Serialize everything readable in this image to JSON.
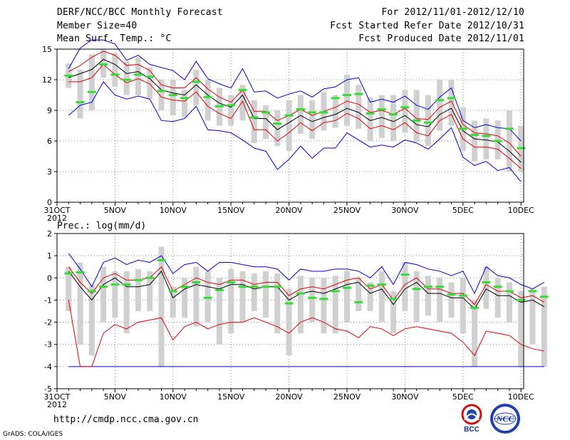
{
  "header": {
    "title": "DERF/NCC/BCC Monthly Forecast",
    "member_size": "Member Size=40",
    "variable": "Mean Surf. Temp.: °C",
    "period": "For 2012/11/01-2012/12/10",
    "started": "Fcst Started Refer Date 2012/10/31",
    "produced": "Fcst Produced Date 2012/11/01"
  },
  "footer": {
    "url": "http://cmdp.ncc.cma.gov.cn",
    "grads": "GrADS: COLA/IGES",
    "logo_bcc": "BCC",
    "logo_ncc": "NCC"
  },
  "colors": {
    "box": "#d0d0d0",
    "obs": "#33dd33",
    "mean": "#000000",
    "sd": "#e00000",
    "range": "#0000dd",
    "grid": "#888888"
  },
  "chart_data": [
    {
      "type": "line",
      "title": "Mean Surf. Temp.: °C",
      "x_ticks": [
        "31OCT\n2012",
        "5NOV",
        "10NOV",
        "15NOV",
        "20NOV",
        "25NOV",
        "30NOV",
        "5DEC",
        "10DEC"
      ],
      "ylim": [
        0,
        15
      ],
      "yticks": [
        0,
        3,
        6,
        9,
        12,
        15
      ],
      "grid": true,
      "series": {
        "mean": [
          12.2,
          12.6,
          13.0,
          14.0,
          13.5,
          12.6,
          12.8,
          12.1,
          11.0,
          10.7,
          10.5,
          11.5,
          10.5,
          9.7,
          9.3,
          10.5,
          8.2,
          8.2,
          7.1,
          7.8,
          8.5,
          7.9,
          8.3,
          8.6,
          9.2,
          8.8,
          8.0,
          8.3,
          7.9,
          8.5,
          7.6,
          7.4,
          8.6,
          9.2,
          7.0,
          6.2,
          6.1,
          5.9,
          5.0,
          3.9
        ],
        "sd_upper": [
          12.8,
          13.4,
          14.2,
          14.8,
          14.4,
          13.4,
          13.5,
          12.9,
          11.5,
          11.2,
          11.2,
          12.2,
          11.1,
          10.3,
          9.8,
          11.0,
          8.9,
          8.9,
          8.0,
          8.5,
          9.1,
          8.5,
          8.9,
          9.3,
          9.9,
          9.6,
          8.8,
          9.0,
          8.6,
          9.2,
          8.2,
          8.1,
          9.3,
          9.9,
          7.6,
          6.8,
          6.7,
          6.5,
          5.8,
          4.5
        ],
        "sd_lower": [
          11.8,
          11.8,
          12.2,
          13.5,
          12.5,
          11.7,
          12.1,
          11.6,
          10.3,
          10.0,
          9.9,
          10.8,
          9.4,
          8.7,
          8.2,
          9.9,
          7.1,
          7.1,
          6.0,
          6.8,
          7.8,
          7.0,
          7.8,
          8.0,
          8.7,
          8.2,
          7.2,
          7.5,
          7.1,
          7.8,
          6.8,
          6.5,
          8.0,
          8.6,
          6.2,
          5.4,
          5.4,
          5.2,
          4.3,
          3.3
        ],
        "max": [
          13.1,
          15.1,
          15.9,
          15.9,
          15.5,
          13.9,
          14.4,
          13.5,
          13.2,
          12.9,
          12.0,
          13.8,
          12.1,
          11.6,
          11.2,
          13.1,
          10.8,
          10.9,
          10.2,
          10.6,
          10.9,
          10.3,
          11.1,
          11.3,
          12.0,
          12.2,
          9.8,
          10.1,
          9.8,
          10.4,
          9.5,
          9.1,
          10.3,
          11.2,
          8.0,
          7.3,
          7.6,
          7.3,
          7.2,
          6.0
        ],
        "min": [
          8.5,
          9.5,
          9.8,
          11.8,
          10.5,
          10.1,
          10.4,
          10.1,
          8.0,
          7.9,
          8.2,
          9.4,
          7.1,
          7.0,
          6.8,
          6.1,
          5.3,
          5.0,
          3.2,
          4.2,
          5.5,
          4.3,
          5.3,
          5.3,
          6.8,
          6.1,
          5.4,
          5.6,
          5.4,
          6.1,
          5.8,
          5.2,
          6.2,
          7.3,
          4.4,
          3.6,
          4.0,
          3.1,
          3.4,
          2.0
        ],
        "box_top": [
          13.6,
          13.0,
          14.5,
          15.0,
          14.6,
          13.8,
          14.2,
          13.2,
          12.0,
          12.0,
          11.0,
          13.0,
          12.0,
          11.2,
          10.5,
          11.5,
          10.0,
          9.5,
          9.0,
          10.0,
          10.5,
          10.0,
          10.8,
          10.5,
          12.5,
          11.5,
          10.3,
          10.5,
          10.5,
          11.0,
          11.0,
          10.5,
          12.0,
          12.0,
          9.3,
          8.0,
          8.2,
          8.0,
          9.0,
          7.5
        ],
        "box_bottom": [
          11.2,
          8.2,
          9.0,
          12.2,
          11.3,
          10.5,
          10.5,
          10.1,
          9.0,
          8.5,
          8.3,
          9.5,
          8.0,
          7.5,
          7.5,
          8.0,
          5.8,
          6.2,
          5.5,
          5.0,
          6.7,
          6.2,
          7.0,
          7.3,
          7.5,
          7.2,
          6.0,
          6.3,
          6.0,
          6.8,
          5.9,
          5.5,
          7.0,
          7.5,
          5.0,
          4.0,
          4.2,
          4.2,
          3.0,
          3.0
        ],
        "observed": [
          12.4,
          9.8,
          10.8,
          13.5,
          12.5,
          12.0,
          12.5,
          12.3,
          10.9,
          10.5,
          10.2,
          11.8,
          10.3,
          9.4,
          9.5,
          11.0,
          8.3,
          8.8,
          7.7,
          8.5,
          9.1,
          8.8,
          8.8,
          10.2,
          10.5,
          10.6,
          8.7,
          9.1,
          8.6,
          9.3,
          8.0,
          7.8,
          10.0,
          10.2,
          7.2,
          6.6,
          6.5,
          6.0,
          7.2,
          5.3
        ]
      }
    },
    {
      "type": "line",
      "title": "Prec.: log(mm/d)",
      "x_ticks": [
        "31OCT\n2012",
        "5NOV",
        "10NOV",
        "15NOV",
        "20NOV",
        "25NOV",
        "30NOV",
        "5DEC",
        "10DEC"
      ],
      "ylim": [
        -5,
        2
      ],
      "yticks": [
        -5,
        -4,
        -3,
        -2,
        -1,
        0,
        1,
        2
      ],
      "grid": true,
      "series": {
        "mean": [
          0.3,
          -0.4,
          -1.0,
          -0.3,
          0.0,
          -0.4,
          -0.4,
          -0.3,
          0.3,
          -0.9,
          -0.5,
          -0.3,
          -0.4,
          -0.5,
          -0.3,
          -0.3,
          -0.5,
          -0.4,
          -0.4,
          -1.0,
          -0.7,
          -0.6,
          -0.7,
          -0.5,
          -0.3,
          -0.2,
          -0.7,
          -0.5,
          -1.2,
          -0.5,
          -0.2,
          -0.7,
          -0.7,
          -0.9,
          -0.9,
          -1.4,
          -0.5,
          -0.8,
          -0.8,
          -1.1,
          -1.0,
          -1.3
        ],
        "sd_upper": [
          0.5,
          -0.2,
          -0.7,
          0.0,
          0.2,
          -0.1,
          -0.1,
          0.0,
          0.5,
          -0.6,
          -0.3,
          0.0,
          -0.2,
          -0.3,
          -0.1,
          -0.1,
          -0.3,
          -0.2,
          -0.2,
          -0.8,
          -0.5,
          -0.4,
          -0.5,
          -0.3,
          -0.1,
          0.0,
          -0.5,
          -0.3,
          -1.0,
          -0.3,
          0.0,
          -0.5,
          -0.5,
          -0.7,
          -0.7,
          -1.2,
          -0.3,
          -0.6,
          -0.6,
          -0.9,
          -0.8,
          -1.1
        ],
        "sd_lower": [
          -1.0,
          -4.0,
          -4.0,
          -2.5,
          -2.1,
          -2.3,
          -2.0,
          -1.9,
          -1.8,
          -2.8,
          -2.2,
          -2.0,
          -2.3,
          -2.1,
          -2.0,
          -2.0,
          -1.8,
          -2.0,
          -2.2,
          -2.5,
          -2.0,
          -1.8,
          -2.0,
          -2.3,
          -2.4,
          -2.7,
          -2.2,
          -2.3,
          -2.6,
          -2.3,
          -2.2,
          -2.3,
          -2.4,
          -2.5,
          -2.9,
          -3.5,
          -2.4,
          -2.5,
          -2.6,
          -3.0,
          -3.2,
          -3.3
        ],
        "max": [
          1.1,
          0.4,
          -0.4,
          0.7,
          0.9,
          0.6,
          0.8,
          0.7,
          1.0,
          0.2,
          0.6,
          0.7,
          0.3,
          0.7,
          0.7,
          0.6,
          0.5,
          0.5,
          0.4,
          -0.1,
          0.4,
          0.3,
          0.3,
          0.4,
          0.4,
          0.3,
          0.0,
          0.5,
          -0.3,
          0.7,
          0.6,
          0.4,
          0.3,
          0.1,
          0.3,
          -0.7,
          0.5,
          0.1,
          0.0,
          -0.3,
          -0.5,
          -0.2
        ],
        "min": [
          -4.0,
          -4.0,
          -4.0,
          -4.0,
          -4.0,
          -4.0,
          -4.0,
          -4.0,
          -4.0,
          -4.0,
          -4.0,
          -4.0,
          -4.0,
          -4.0,
          -4.0,
          -4.0,
          -4.0,
          -4.0,
          -4.0,
          -4.0,
          -4.0,
          -4.0,
          -4.0,
          -4.0,
          -4.0,
          -4.0,
          -4.0,
          -4.0,
          -4.0,
          -4.0,
          -4.0,
          -4.0,
          -4.0,
          -4.0,
          -4.0,
          -4.0,
          -4.0,
          -4.0,
          -4.0,
          -4.0,
          -4.0,
          -4.0
        ],
        "box_top": [
          0.5,
          0.7,
          -0.3,
          0.5,
          0.3,
          0.3,
          0.4,
          0.3,
          1.4,
          -0.4,
          0.0,
          0.5,
          0.3,
          0.0,
          0.4,
          0.3,
          0.2,
          0.3,
          0.2,
          -0.5,
          0.1,
          0.0,
          0.0,
          0.1,
          0.3,
          0.0,
          -0.2,
          0.3,
          -0.6,
          0.7,
          0.3,
          0.1,
          0.0,
          -0.2,
          0.0,
          -1.0,
          0.5,
          0.0,
          -0.2,
          -0.6,
          -0.5,
          -0.4
        ],
        "box_bottom": [
          -1.5,
          -3.0,
          -3.5,
          -2.0,
          -1.8,
          -2.5,
          -1.5,
          -1.5,
          -4.0,
          -1.8,
          -1.8,
          -2.2,
          -2.0,
          -3.0,
          -2.5,
          -2.0,
          -1.5,
          -1.8,
          -2.5,
          -3.5,
          -2.5,
          -2.0,
          -2.5,
          -2.5,
          -2.0,
          -1.5,
          -1.5,
          -2.0,
          -2.5,
          -1.5,
          -2.0,
          -1.7,
          -2.0,
          -1.8,
          -2.5,
          -4.0,
          -1.4,
          -1.8,
          -2.0,
          -4.0,
          -3.0,
          -4.0
        ],
        "observed": [
          0.2,
          0.25,
          -0.6,
          -0.4,
          -0.3,
          -0.3,
          -0.1,
          0.0,
          0.8,
          -0.6,
          -0.4,
          -0.2,
          -0.9,
          -0.55,
          -0.2,
          -0.4,
          -0.4,
          -0.4,
          -0.4,
          -1.15,
          -0.7,
          -0.9,
          -0.95,
          -0.6,
          -0.45,
          -1.1,
          -0.35,
          -0.3,
          -0.95,
          0.15,
          -0.5,
          -0.4,
          -0.4,
          -0.75,
          -0.8,
          -1.35,
          -0.2,
          -0.4,
          -0.6,
          -1.0,
          -0.6,
          -0.85
        ]
      }
    }
  ]
}
